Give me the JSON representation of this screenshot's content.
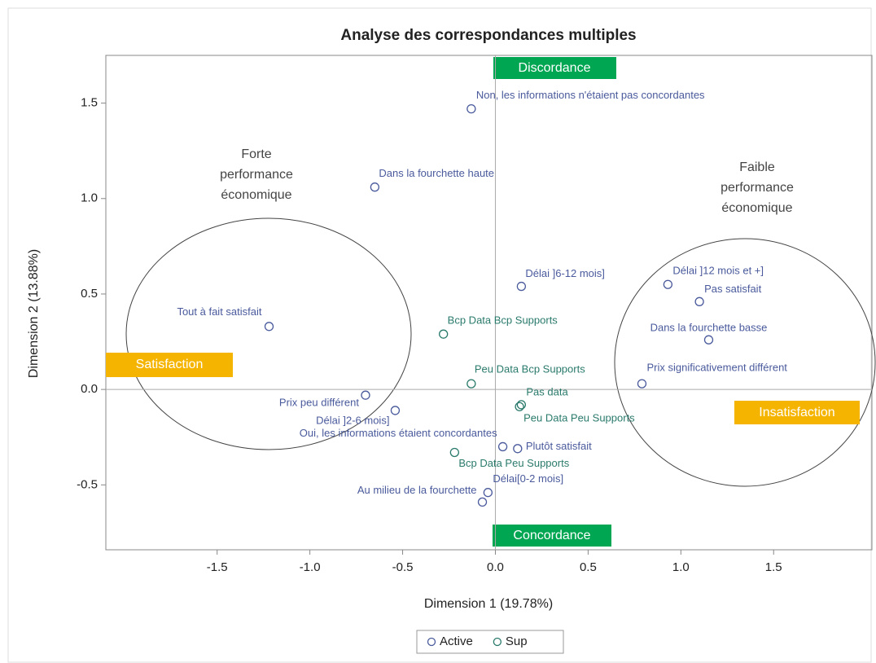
{
  "chart_data": {
    "type": "scatter",
    "title": "Analyse des correspondances multiples",
    "xlabel": "Dimension 1 (19.78%)",
    "ylabel": "Dimension 2 (13.88%)",
    "xlim": [
      -2.1,
      2.03
    ],
    "ylim": [
      -0.84,
      1.75
    ],
    "xticks": [
      -1.5,
      {
        "value": -1,
        "label": "-1.0"
      },
      -0.5,
      {
        "value": 0,
        "label": "0.0"
      },
      0.5,
      {
        "value": 1,
        "label": "1.0"
      },
      1.5
    ],
    "yticks": [
      -0.5,
      {
        "value": 0,
        "label": "0.0"
      },
      0.5,
      {
        "value": 1,
        "label": "1.0"
      },
      1.5
    ],
    "grid": false,
    "legend": "bottom",
    "series": [
      {
        "name": "Active",
        "color": "#4a5a9c",
        "x": [
          -0.13,
          -0.65,
          0.14,
          0.93,
          1.1,
          1.15,
          0.79,
          -1.22,
          -0.7,
          -0.54,
          0.04,
          0.12,
          -0.04,
          -0.07
        ],
        "values": [
          1.47,
          1.06,
          0.54,
          0.55,
          0.46,
          0.26,
          0.03,
          0.33,
          -0.03,
          -0.11,
          -0.3,
          -0.31,
          -0.54,
          -0.59
        ],
        "labels": [
          "Non, les informations n'étaient pas concordantes",
          "Dans la fourchette haute",
          "Délai ]6-12 mois]",
          "Délai ]12 mois et +]",
          "Pas satisfait",
          "Dans la fourchette basse",
          "Prix significativement différent",
          "Tout à fait satisfait",
          "Prix peu différent",
          "Délai ]2-6 mois]",
          "Oui, les informations étaient concordantes",
          "Plutôt satisfait",
          "Délai[0-2 mois]",
          "Au milieu de la fourchette"
        ]
      },
      {
        "name": "Sup",
        "color": "#2a7a6c",
        "x": [
          -0.28,
          -0.13,
          0.14,
          0.13,
          -0.22
        ],
        "values": [
          0.29,
          0.03,
          -0.08,
          -0.09,
          -0.33
        ],
        "labels": [
          "Bcp Data Bcp Supports",
          "Peu Data Bcp Supports",
          "Pas data",
          "Peu Data Peu Supports",
          "Bcp Data Peu Supports"
        ]
      }
    ],
    "annotations": {
      "top": "Discordance",
      "bottom": "Concordance",
      "left": "Satisfaction",
      "right": "Insatisfaction",
      "left_group": [
        "Forte",
        "performance",
        "économique"
      ],
      "right_group": [
        "Faible",
        "performance",
        "économique"
      ]
    }
  }
}
